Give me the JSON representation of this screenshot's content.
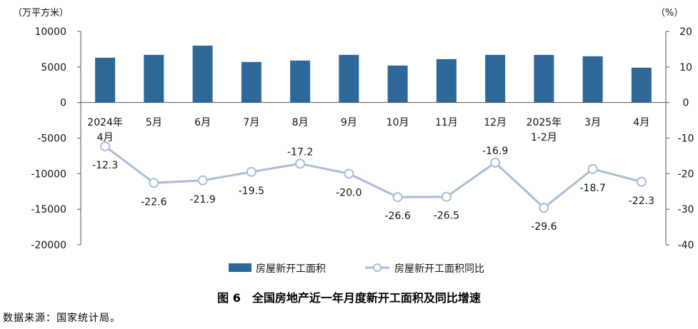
{
  "caption": "图 6　全国房地产近一年月度新开工面积及同比增速",
  "source": "数据来源：国家统计局。",
  "colors": {
    "bar": "#2e6898",
    "line": "#a8bdd6",
    "axis": "#555555"
  },
  "chart_data": {
    "type": "bar+line",
    "categories": [
      [
        "2024年",
        "4月"
      ],
      [
        "5月"
      ],
      [
        "6月"
      ],
      [
        "7月"
      ],
      [
        "8月"
      ],
      [
        "9月"
      ],
      [
        "10月"
      ],
      [
        "11月"
      ],
      [
        "12月"
      ],
      [
        "2025年",
        "1-2月"
      ],
      [
        "3月"
      ],
      [
        "4月"
      ]
    ],
    "series": [
      {
        "name": "房屋新开工面积",
        "type": "bar",
        "axis": "left",
        "values": [
          6300,
          6700,
          8000,
          5700,
          5900,
          6700,
          5200,
          6100,
          6700,
          6700,
          6500,
          4900
        ]
      },
      {
        "name": "房屋新开工面积同比",
        "type": "line",
        "axis": "right",
        "values": [
          -12.3,
          -22.6,
          -21.9,
          -19.5,
          -17.2,
          -20.0,
          -26.6,
          -26.5,
          -16.9,
          -29.6,
          -18.7,
          -22.3
        ],
        "labels": [
          "-12.3",
          "-22.6",
          "-21.9",
          "-19.5",
          "-17.2",
          "-20.0",
          "-26.6",
          "-26.5",
          "-16.9",
          "-29.6",
          "-18.7",
          "-22.3"
        ]
      }
    ],
    "y_left": {
      "unit": "（万平方米）",
      "min": -20000,
      "max": 10000,
      "ticks": [
        "10000",
        "5000",
        "0",
        "-5000",
        "-10000",
        "-15000",
        "-20000"
      ]
    },
    "y_right": {
      "unit": "（%）",
      "min": -40,
      "max": 20,
      "ticks": [
        "20",
        "10",
        "0",
        "-10",
        "-20",
        "-30",
        "-40"
      ]
    },
    "label_position": [
      "below",
      "below",
      "below",
      "below",
      "above",
      "below",
      "below",
      "below",
      "above",
      "below",
      "below",
      "below"
    ]
  }
}
